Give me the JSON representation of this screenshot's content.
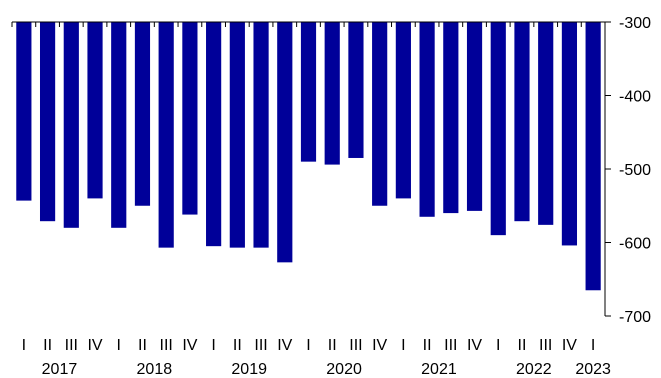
{
  "chart_data": {
    "type": "bar",
    "title": "",
    "xlabel": "",
    "ylabel": "",
    "ylim": [
      -700,
      -300
    ],
    "y_ticks": [
      -300,
      -400,
      -500,
      -600,
      -700
    ],
    "y_axis_position": "right",
    "bars_hang_from": -300,
    "grid": false,
    "legend": "none",
    "bar_color": "#000099",
    "categories": [
      {
        "quarter": "I",
        "year": "2017"
      },
      {
        "quarter": "II",
        "year": "2017"
      },
      {
        "quarter": "III",
        "year": "2017"
      },
      {
        "quarter": "IV",
        "year": "2017"
      },
      {
        "quarter": "I",
        "year": "2018"
      },
      {
        "quarter": "II",
        "year": "2018"
      },
      {
        "quarter": "III",
        "year": "2018"
      },
      {
        "quarter": "IV",
        "year": "2018"
      },
      {
        "quarter": "I",
        "year": "2019"
      },
      {
        "quarter": "II",
        "year": "2019"
      },
      {
        "quarter": "III",
        "year": "2019"
      },
      {
        "quarter": "IV",
        "year": "2019"
      },
      {
        "quarter": "I",
        "year": "2020"
      },
      {
        "quarter": "II",
        "year": "2020"
      },
      {
        "quarter": "III",
        "year": "2020"
      },
      {
        "quarter": "IV",
        "year": "2020"
      },
      {
        "quarter": "I",
        "year": "2021"
      },
      {
        "quarter": "II",
        "year": "2021"
      },
      {
        "quarter": "III",
        "year": "2021"
      },
      {
        "quarter": "IV",
        "year": "2021"
      },
      {
        "quarter": "I",
        "year": "2022"
      },
      {
        "quarter": "II",
        "year": "2022"
      },
      {
        "quarter": "III",
        "year": "2022"
      },
      {
        "quarter": "IV",
        "year": "2022"
      },
      {
        "quarter": "I",
        "year": "2023"
      }
    ],
    "years": [
      "2017",
      "2018",
      "2019",
      "2020",
      "2021",
      "2022",
      "2023"
    ],
    "values": [
      -543,
      -571,
      -580,
      -540,
      -580,
      -550,
      -607,
      -562,
      -605,
      -607,
      -607,
      -627,
      -490,
      -494,
      -485,
      -550,
      -540,
      -565,
      -560,
      -557,
      -590,
      -571,
      -576,
      -604,
      -665
    ]
  }
}
